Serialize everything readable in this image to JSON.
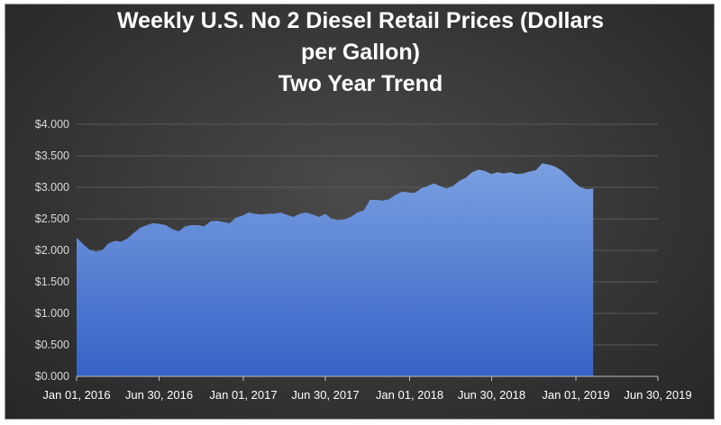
{
  "chart_data": {
    "type": "area",
    "title_lines": [
      "Weekly U.S. No 2 Diesel Retail Prices  (Dollars",
      "per Gallon)",
      "Two Year Trend"
    ],
    "xlabel": "",
    "ylabel": "",
    "ylim": [
      0,
      4.0
    ],
    "yticks": [
      0,
      0.5,
      1.0,
      1.5,
      2.0,
      2.5,
      3.0,
      3.5,
      4.0
    ],
    "ytick_labels": [
      "$0.000",
      "$0.500",
      "$1.000",
      "$1.500",
      "$2.000",
      "$2.500",
      "$3.000",
      "$3.500",
      "$4.000"
    ],
    "xlim": [
      "2016-01-01",
      "2019-06-30"
    ],
    "xticks": [
      "2016-01-01",
      "2016-06-30",
      "2017-01-01",
      "2017-06-30",
      "2018-01-01",
      "2018-06-30",
      "2019-01-01",
      "2019-06-30"
    ],
    "xtick_labels": [
      "Jan 01, 2016",
      "Jun 30, 2016",
      "Jan 01, 2017",
      "Jun 30, 2017",
      "Jan 01, 2018",
      "Jun 30, 2018",
      "Jan 01, 2019",
      "Jun 30, 2019"
    ],
    "grid": true,
    "colors": {
      "area_top": "#7a9fe0",
      "area_bottom": "#3562c6",
      "grid": "#5a5a5a",
      "axis": "#bfbfbf"
    },
    "series": [
      {
        "x": [
          "2016-01-01",
          "2016-01-15",
          "2016-01-29",
          "2016-02-12",
          "2016-02-26",
          "2016-03-11",
          "2016-03-25",
          "2016-04-08",
          "2016-04-22",
          "2016-05-06",
          "2016-05-20",
          "2016-06-03",
          "2016-06-17",
          "2016-07-01",
          "2016-07-15",
          "2016-07-29",
          "2016-08-12",
          "2016-08-26",
          "2016-09-09",
          "2016-09-23",
          "2016-10-07",
          "2016-10-21",
          "2016-11-04",
          "2016-11-18",
          "2016-12-02",
          "2016-12-16",
          "2016-12-30",
          "2017-01-13",
          "2017-01-27",
          "2017-02-10",
          "2017-02-24",
          "2017-03-10",
          "2017-03-24",
          "2017-04-07",
          "2017-04-21",
          "2017-05-05",
          "2017-05-19",
          "2017-06-02",
          "2017-06-16",
          "2017-06-30",
          "2017-07-14",
          "2017-07-28",
          "2017-08-11",
          "2017-08-25",
          "2017-09-08",
          "2017-09-22",
          "2017-10-06",
          "2017-10-20",
          "2017-11-03",
          "2017-11-17",
          "2017-12-01",
          "2017-12-15",
          "2017-12-29",
          "2018-01-12",
          "2018-01-26",
          "2018-02-09",
          "2018-02-23",
          "2018-03-09",
          "2018-03-23",
          "2018-04-06",
          "2018-04-20",
          "2018-05-04",
          "2018-05-18",
          "2018-06-01",
          "2018-06-15",
          "2018-06-29",
          "2018-07-13",
          "2018-07-27",
          "2018-08-10",
          "2018-08-24",
          "2018-09-07",
          "2018-09-21",
          "2018-10-05",
          "2018-10-19",
          "2018-11-02",
          "2018-11-16",
          "2018-11-30",
          "2018-12-14",
          "2018-12-28",
          "2019-01-11",
          "2019-01-25",
          "2019-02-08"
        ],
        "y": [
          2.2,
          2.1,
          2.01,
          1.98,
          2.0,
          2.11,
          2.15,
          2.14,
          2.19,
          2.28,
          2.36,
          2.4,
          2.43,
          2.42,
          2.4,
          2.34,
          2.3,
          2.38,
          2.4,
          2.4,
          2.38,
          2.46,
          2.47,
          2.45,
          2.43,
          2.52,
          2.55,
          2.6,
          2.58,
          2.57,
          2.58,
          2.58,
          2.6,
          2.56,
          2.53,
          2.58,
          2.6,
          2.57,
          2.53,
          2.58,
          2.5,
          2.48,
          2.49,
          2.53,
          2.6,
          2.63,
          2.8,
          2.8,
          2.79,
          2.81,
          2.88,
          2.93,
          2.92,
          2.91,
          2.98,
          3.02,
          3.06,
          3.02,
          2.98,
          3.02,
          3.1,
          3.15,
          3.24,
          3.28,
          3.26,
          3.21,
          3.24,
          3.22,
          3.24,
          3.21,
          3.22,
          3.25,
          3.27,
          3.38,
          3.36,
          3.33,
          3.27,
          3.18,
          3.08,
          3.0,
          2.97,
          2.98
        ]
      }
    ]
  }
}
